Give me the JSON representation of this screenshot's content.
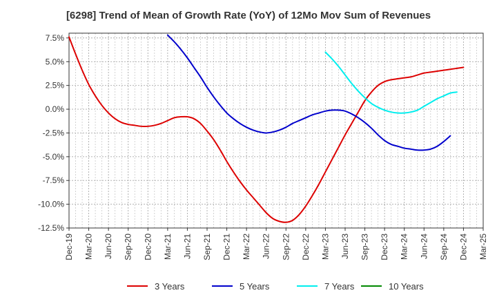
{
  "chart_data": {
    "type": "line",
    "title": "[6298]  Trend of Mean of Growth Rate (YoY) of 12Mo Mov Sum of Revenues",
    "xlabel": "",
    "ylabel": "",
    "x_ticks": [
      "Dec-19",
      "Mar-20",
      "Jun-20",
      "Sep-20",
      "Dec-20",
      "Mar-21",
      "Jun-21",
      "Sep-21",
      "Dec-21",
      "Mar-22",
      "Jun-22",
      "Sep-22",
      "Dec-22",
      "Mar-23",
      "Jun-23",
      "Sep-23",
      "Dec-23",
      "Mar-24",
      "Jun-24",
      "Sep-24",
      "Dec-24",
      "Mar-25"
    ],
    "y_ticks": [
      7.5,
      5.0,
      2.5,
      0.0,
      -2.5,
      -5.0,
      -7.5,
      -10.0,
      -12.5
    ],
    "y_tick_labels": [
      "7.5%",
      "5.0%",
      "2.5%",
      "0.0%",
      "-2.5%",
      "-5.0%",
      "-7.5%",
      "-10.0%",
      "-12.5%"
    ],
    "ylim": [
      -12.5,
      8.0
    ],
    "grid": true,
    "legend_position": "bottom",
    "series": [
      {
        "name": "3 Years",
        "color": "#dd0000",
        "start_index": 0,
        "values": [
          7.6,
          5.8,
          4.1,
          2.6,
          1.4,
          0.4,
          -0.4,
          -1.0,
          -1.4,
          -1.6,
          -1.7,
          -1.8,
          -1.8,
          -1.7,
          -1.5,
          -1.2,
          -0.9,
          -0.8,
          -0.8,
          -1.0,
          -1.5,
          -2.3,
          -3.2,
          -4.3,
          -5.5,
          -6.6,
          -7.6,
          -8.5,
          -9.3,
          -10.1,
          -10.9,
          -11.5,
          -11.8,
          -11.9,
          -11.7,
          -11.1,
          -10.2,
          -9.1,
          -7.9,
          -6.6,
          -5.3,
          -4.0,
          -2.7,
          -1.5,
          -0.3,
          0.9,
          1.8,
          2.5,
          2.9,
          3.1,
          3.2,
          3.3,
          3.4,
          3.6,
          3.8,
          3.9,
          4.0,
          4.1,
          4.2,
          4.3,
          4.4
        ]
      },
      {
        "name": "5 Years",
        "color": "#0000cc",
        "start_index": 15,
        "values": [
          7.8,
          7.1,
          6.3,
          5.4,
          4.4,
          3.4,
          2.3,
          1.3,
          0.4,
          -0.4,
          -1.0,
          -1.5,
          -1.9,
          -2.2,
          -2.4,
          -2.5,
          -2.4,
          -2.2,
          -1.9,
          -1.5,
          -1.2,
          -0.9,
          -0.6,
          -0.4,
          -0.2,
          -0.1,
          -0.1,
          -0.2,
          -0.5,
          -0.9,
          -1.4,
          -2.0,
          -2.7,
          -3.3,
          -3.7,
          -3.9,
          -4.1,
          -4.2,
          -4.3,
          -4.3,
          -4.2,
          -3.9,
          -3.4,
          -2.8
        ]
      },
      {
        "name": "7 Years",
        "color": "#00eeee",
        "start_index": 39,
        "values": [
          6.0,
          5.3,
          4.5,
          3.6,
          2.7,
          1.9,
          1.2,
          0.6,
          0.2,
          -0.1,
          -0.3,
          -0.4,
          -0.4,
          -0.3,
          -0.1,
          0.3,
          0.7,
          1.1,
          1.4,
          1.7,
          1.8
        ]
      },
      {
        "name": "10 Years",
        "color": "#008800",
        "start_index": 0,
        "values": []
      }
    ]
  }
}
